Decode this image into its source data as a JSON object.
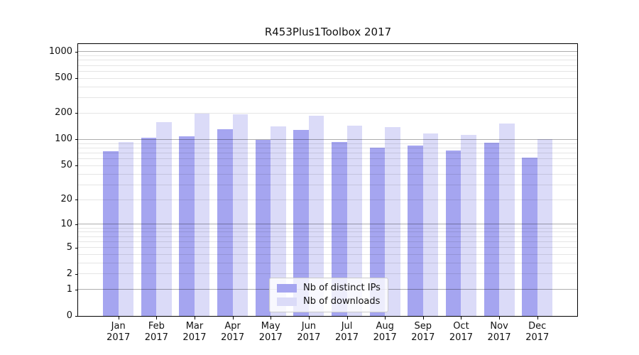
{
  "title": "R453Plus1Toolbox 2017",
  "chart_data": {
    "type": "bar",
    "title": "R453Plus1Toolbox 2017",
    "categories": [
      "Jan",
      "Feb",
      "Mar",
      "Apr",
      "May",
      "Jun",
      "Jul",
      "Aug",
      "Sep",
      "Oct",
      "Nov",
      "Dec"
    ],
    "x_tick_label_line2": "2017",
    "series": [
      {
        "name": "Nb of distinct IPs",
        "color": "#a5a5f0",
        "values": [
          73,
          104,
          108,
          130,
          99,
          128,
          93,
          80,
          85,
          75,
          91,
          62
        ]
      },
      {
        "name": "Nb of downloads",
        "color": "#dbdbf8",
        "values": [
          94,
          158,
          197,
          195,
          142,
          187,
          145,
          139,
          117,
          113,
          152,
          100
        ]
      }
    ],
    "xlabel": "",
    "ylabel": "",
    "y_scale": "log10(1+x)",
    "ylim": [
      0,
      1000
    ],
    "y_ticks": [
      0,
      1,
      2,
      5,
      10,
      20,
      50,
      100,
      200,
      500,
      1000
    ],
    "y_major_gridlines": [
      1,
      10,
      100,
      1000
    ],
    "y_minor_gridlines": [
      2,
      3,
      4,
      5,
      6,
      7,
      8,
      9,
      20,
      30,
      40,
      50,
      60,
      70,
      80,
      90,
      200,
      300,
      400,
      500,
      600,
      700,
      800,
      900
    ],
    "grid": "both",
    "legend_position": "inside-bottom-center"
  },
  "colors": {
    "background": "#ffffff",
    "axis": "#000000",
    "major_grid": "rgba(0,0,0,0.32)",
    "minor_grid": "rgba(0,0,0,0.10)",
    "bar_ips": "#a5a5f0",
    "bar_downloads": "#dbdbf8",
    "legend_bg": "rgba(255,255,255,0.8)",
    "legend_border": "#cbcbcb"
  }
}
